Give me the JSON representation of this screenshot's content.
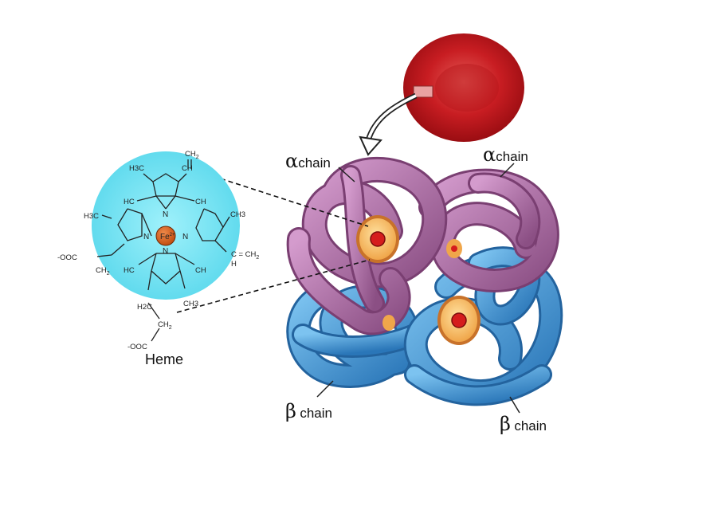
{
  "labels": {
    "alpha_left": {
      "symbol": "α",
      "word": "chain"
    },
    "alpha_right": {
      "symbol": "α",
      "word": "chain"
    },
    "beta_left": {
      "symbol": "β",
      "word": "chain"
    },
    "beta_right": {
      "symbol": "β",
      "word": "chain"
    },
    "heme": "Heme"
  },
  "heme_structure": {
    "center": "Fe",
    "center_charge": "2+",
    "nitrogen": "N",
    "groups": {
      "top_vinyl": "CH",
      "top_vinyl_sub": "2",
      "top_ch": "CH",
      "methyl_top_left": "H3C",
      "methyl_left": "H3C",
      "methyl_right": "CH3",
      "methyl_bottom": "CH3",
      "hc_left_top": "HC",
      "ch_right_top": "CH",
      "hc_left_bottom": "HC",
      "ch_right_bottom": "CH",
      "vinyl_right": "C = CH",
      "vinyl_right_sub": "2",
      "vinyl_right_h": "H",
      "ooc_left": "-OOC",
      "ch2_left": "CH",
      "h2c_bottom": "H2C",
      "ch2_bottom": "CH",
      "ooc_bottom": "-OOC"
    }
  },
  "colors": {
    "alpha_chain": "#a9679f",
    "beta_chain": "#3d8fcf",
    "heme_circle": "#7fe3f1",
    "iron": "#d9621c",
    "red_cell": "#c0141a"
  }
}
